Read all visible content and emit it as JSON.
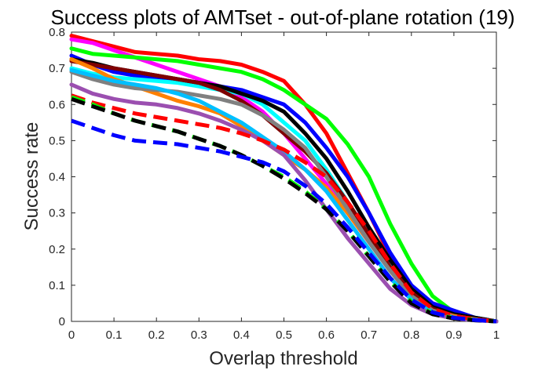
{
  "chart_data": {
    "type": "line",
    "title": "Success plots of AMTset - out-of-plane rotation (19)",
    "xlabel": "Overlap threshold",
    "ylabel": "Success rate",
    "xlim": [
      0,
      1
    ],
    "ylim": [
      0,
      0.8
    ],
    "xticks": [
      "0",
      "0.1",
      "0.2",
      "0.3",
      "0.4",
      "0.5",
      "0.6",
      "0.7",
      "0.8",
      "0.9",
      "1"
    ],
    "yticks": [
      "0",
      "0.1",
      "0.2",
      "0.3",
      "0.4",
      "0.5",
      "0.6",
      "0.7",
      "0.8"
    ],
    "grid": false,
    "legend": "none",
    "x": [
      0,
      0.05,
      0.1,
      0.15,
      0.2,
      0.25,
      0.3,
      0.35,
      0.4,
      0.45,
      0.5,
      0.55,
      0.6,
      0.65,
      0.7,
      0.75,
      0.8,
      0.85,
      0.9,
      0.95,
      1
    ],
    "series": [
      {
        "color": "#ff0000",
        "dash": false,
        "values": [
          0.79,
          0.775,
          0.76,
          0.745,
          0.74,
          0.735,
          0.725,
          0.72,
          0.71,
          0.69,
          0.665,
          0.6,
          0.52,
          0.41,
          0.3,
          0.18,
          0.08,
          0.03,
          0.015,
          0.008,
          0
        ]
      },
      {
        "color": "#ff00ff",
        "dash": false,
        "values": [
          0.78,
          0.77,
          0.75,
          0.73,
          0.71,
          0.69,
          0.67,
          0.65,
          0.62,
          0.58,
          0.52,
          0.45,
          0.38,
          0.3,
          0.22,
          0.14,
          0.07,
          0.03,
          0.015,
          0.008,
          0
        ]
      },
      {
        "color": "#00ff00",
        "dash": false,
        "values": [
          0.755,
          0.74,
          0.735,
          0.73,
          0.725,
          0.72,
          0.71,
          0.7,
          0.69,
          0.67,
          0.64,
          0.6,
          0.56,
          0.49,
          0.4,
          0.27,
          0.16,
          0.07,
          0.025,
          0.01,
          0
        ]
      },
      {
        "color": "#0000ff",
        "dash": false,
        "values": [
          0.735,
          0.71,
          0.69,
          0.68,
          0.675,
          0.67,
          0.66,
          0.65,
          0.64,
          0.62,
          0.6,
          0.55,
          0.48,
          0.4,
          0.3,
          0.19,
          0.1,
          0.05,
          0.03,
          0.01,
          0
        ]
      },
      {
        "color": "#00ffff",
        "dash": false,
        "values": [
          0.7,
          0.685,
          0.675,
          0.67,
          0.665,
          0.66,
          0.65,
          0.64,
          0.63,
          0.6,
          0.55,
          0.5,
          0.42,
          0.33,
          0.24,
          0.16,
          0.08,
          0.035,
          0.015,
          0.006,
          0
        ]
      },
      {
        "color": "#000000",
        "dash": false,
        "values": [
          0.725,
          0.715,
          0.7,
          0.69,
          0.68,
          0.67,
          0.66,
          0.65,
          0.63,
          0.61,
          0.58,
          0.52,
          0.45,
          0.36,
          0.26,
          0.17,
          0.09,
          0.04,
          0.02,
          0.01,
          0
        ]
      },
      {
        "color": "#7f0000",
        "dash": false,
        "values": [
          0.72,
          0.71,
          0.7,
          0.69,
          0.68,
          0.67,
          0.66,
          0.64,
          0.61,
          0.57,
          0.52,
          0.47,
          0.41,
          0.33,
          0.24,
          0.15,
          0.08,
          0.035,
          0.015,
          0.006,
          0
        ]
      },
      {
        "color": "#ff8000",
        "dash": false,
        "values": [
          0.725,
          0.7,
          0.67,
          0.65,
          0.63,
          0.61,
          0.595,
          0.575,
          0.54,
          0.5,
          0.46,
          0.42,
          0.37,
          0.3,
          0.22,
          0.14,
          0.07,
          0.03,
          0.015,
          0.006,
          0
        ]
      },
      {
        "color": "#808080",
        "dash": false,
        "values": [
          0.69,
          0.67,
          0.655,
          0.645,
          0.64,
          0.635,
          0.625,
          0.615,
          0.6,
          0.57,
          0.53,
          0.48,
          0.4,
          0.31,
          0.22,
          0.14,
          0.07,
          0.03,
          0.012,
          0.005,
          0
        ]
      },
      {
        "color": "#00bfff",
        "dash": false,
        "values": [
          0.695,
          0.68,
          0.665,
          0.655,
          0.645,
          0.63,
          0.61,
          0.58,
          0.55,
          0.51,
          0.47,
          0.42,
          0.36,
          0.28,
          0.2,
          0.12,
          0.06,
          0.025,
          0.01,
          0.004,
          0
        ]
      },
      {
        "color": "#9b4fb0",
        "dash": false,
        "values": [
          0.655,
          0.63,
          0.615,
          0.605,
          0.6,
          0.59,
          0.575,
          0.555,
          0.53,
          0.5,
          0.46,
          0.39,
          0.31,
          0.23,
          0.16,
          0.09,
          0.045,
          0.02,
          0.008,
          0.003,
          0
        ]
      },
      {
        "color": "#ff0000",
        "dash": true,
        "values": [
          0.625,
          0.605,
          0.59,
          0.575,
          0.565,
          0.555,
          0.545,
          0.535,
          0.52,
          0.5,
          0.475,
          0.44,
          0.4,
          0.33,
          0.25,
          0.16,
          0.08,
          0.035,
          0.015,
          0.006,
          0
        ]
      },
      {
        "color": "#00ff00",
        "dash": true,
        "values": [
          0.62,
          0.6,
          0.575,
          0.555,
          0.54,
          0.525,
          0.505,
          0.485,
          0.46,
          0.43,
          0.4,
          0.36,
          0.31,
          0.25,
          0.18,
          0.11,
          0.055,
          0.022,
          0.009,
          0.004,
          0
        ]
      },
      {
        "color": "#000000",
        "dash": true,
        "values": [
          0.615,
          0.595,
          0.575,
          0.555,
          0.54,
          0.525,
          0.505,
          0.485,
          0.46,
          0.43,
          0.395,
          0.355,
          0.31,
          0.25,
          0.18,
          0.11,
          0.05,
          0.02,
          0.008,
          0.003,
          0
        ]
      },
      {
        "color": "#0000ff",
        "dash": true,
        "values": [
          0.555,
          0.535,
          0.515,
          0.5,
          0.495,
          0.49,
          0.48,
          0.47,
          0.455,
          0.44,
          0.415,
          0.375,
          0.325,
          0.26,
          0.19,
          0.12,
          0.06,
          0.025,
          0.01,
          0.004,
          0
        ]
      }
    ]
  }
}
